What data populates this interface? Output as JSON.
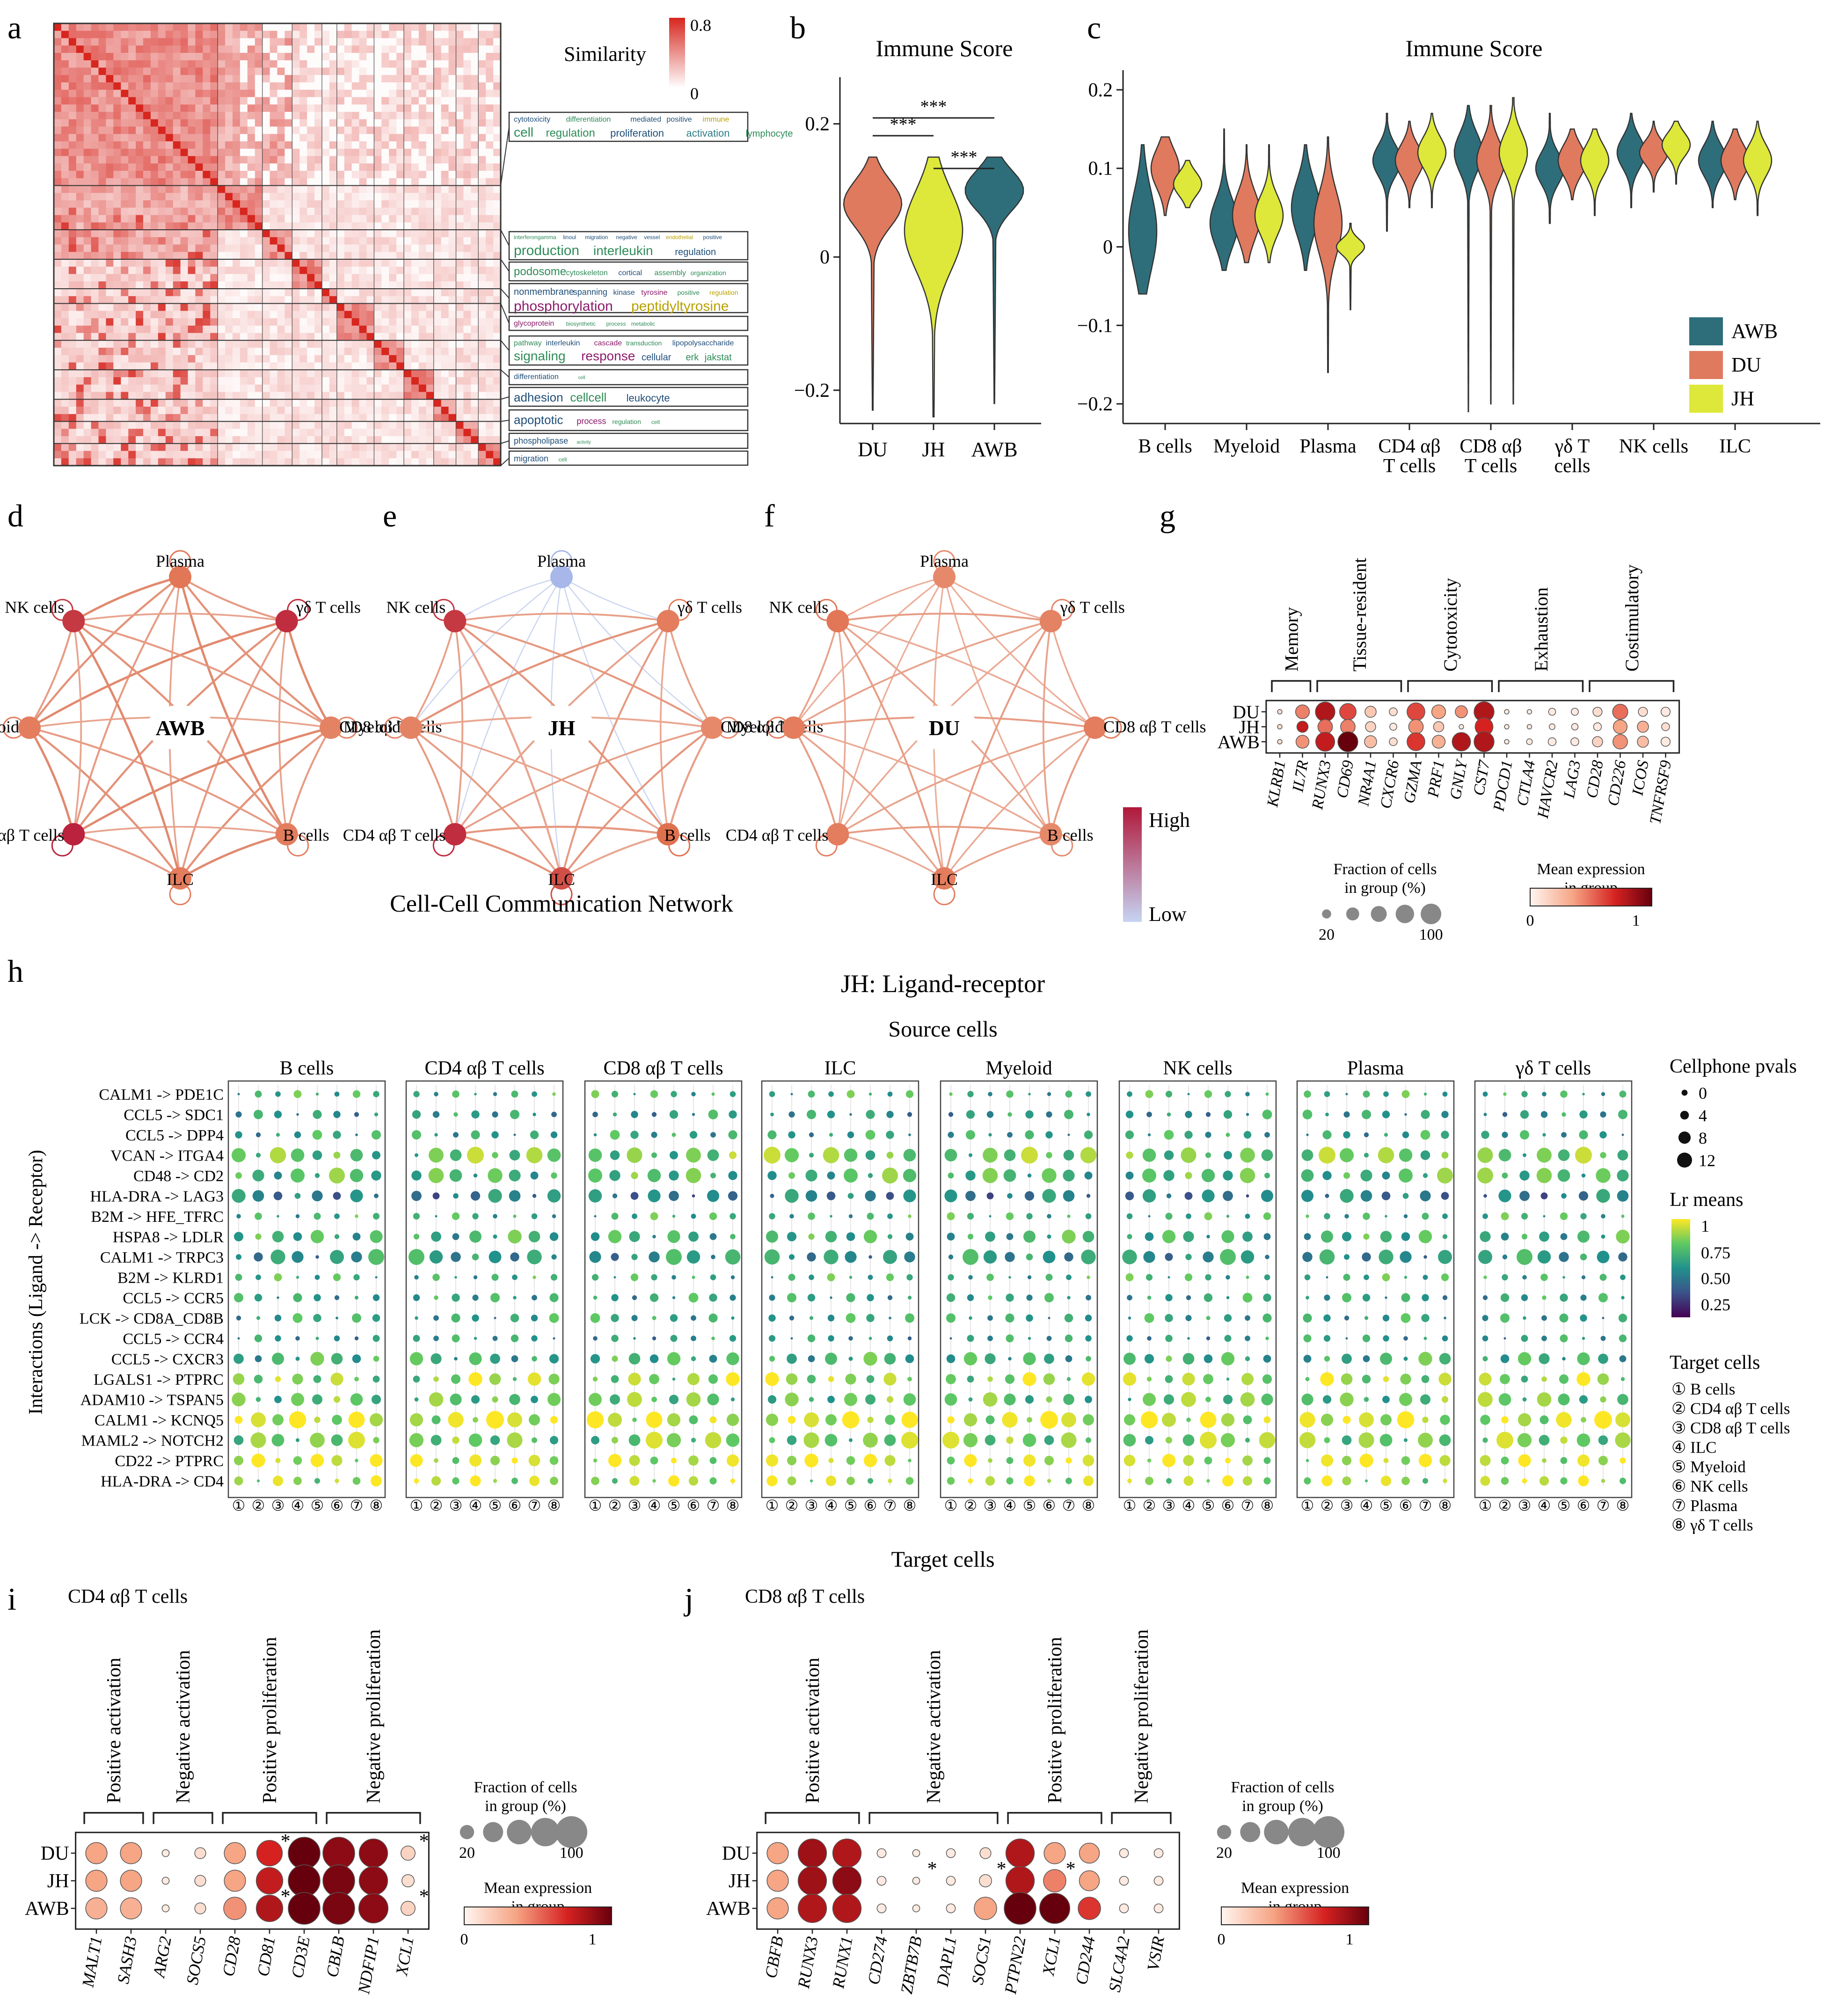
{
  "panel_letters": [
    "a",
    "b",
    "c",
    "d",
    "e",
    "f",
    "g",
    "h",
    "i",
    "j"
  ],
  "colors": {
    "AWB": "#2e6e7a",
    "DU": "#df7a5f",
    "JH": "#dde83a",
    "heat_high": "#d7261e",
    "net_high": "#b0183a",
    "net_low": "#c7d4f4"
  },
  "panel_a": {
    "legend_title": "Similarity",
    "legend_max": "0.8",
    "legend_min": "0",
    "wordclouds": [
      [
        "cytotoxicity",
        "differentiation",
        "mediated",
        "positive",
        "immune"
      ],
      [
        "cell",
        "regulation",
        "proliferation",
        "activation",
        "lymphocyte"
      ],
      [
        "interferongamma",
        "linoul",
        "migration",
        "negative",
        "vessel",
        "endothelial",
        "positive"
      ],
      [
        "production",
        "interleukin",
        "regulation"
      ],
      [
        "podosome",
        "cytoskeleton",
        "cortical",
        "assembly",
        "organization"
      ],
      [
        "nonmembrane",
        "spanning",
        "kinase",
        "tyrosine",
        "positive",
        "regulation"
      ],
      [
        "phosphorylation",
        "peptidyltyrosine"
      ],
      [
        "glycoprotein",
        "biosynthetic",
        "process",
        "metabolic"
      ],
      [
        "pathway",
        "interleukin",
        "cascade",
        "transduction",
        "lipopolysaccharide"
      ],
      [
        "signaling",
        "response",
        "cellular",
        "erk",
        "jakstat"
      ],
      [
        "differentiation",
        "cell"
      ],
      [
        "adhesion",
        "cellcell",
        "leukocyte"
      ],
      [
        "apoptotic",
        "process",
        "regulation",
        "cell"
      ],
      [
        "phospholipase",
        "activity"
      ],
      [
        "migration",
        "cell"
      ]
    ]
  },
  "chart_data": [
    {
      "panel": "b",
      "type": "violin",
      "title": "Immune Score",
      "categories": [
        "DU",
        "JH",
        "AWB"
      ],
      "ylim": [
        -0.25,
        0.27
      ],
      "yticks": [
        -0.2,
        0,
        0.2
      ],
      "ytick_labels": [
        "−0.2",
        "0",
        "0.2"
      ],
      "violins": [
        {
          "group": "DU",
          "min": -0.23,
          "max": 0.15,
          "mode": 0.08,
          "width": 0.52,
          "spread": 0.035
        },
        {
          "group": "JH",
          "min": -0.24,
          "max": 0.15,
          "mode": 0.04,
          "width": 0.52,
          "spread": 0.06
        },
        {
          "group": "AWB",
          "min": -0.22,
          "max": 0.15,
          "mode": 0.1,
          "width": 0.52,
          "spread": 0.03
        }
      ],
      "significance": [
        {
          "from": "DU",
          "to": "AWB",
          "label": "***"
        },
        {
          "from": "DU",
          "to": "JH",
          "label": "***"
        },
        {
          "from": "JH",
          "to": "AWB",
          "label": "***"
        }
      ]
    },
    {
      "panel": "c",
      "type": "violin",
      "title": "Immune Score",
      "categories": [
        "B cells",
        "Myeloid",
        "Plasma",
        "CD4 αβ T cells",
        "CD8 αβ T cells",
        "γδ T cells",
        "NK cells",
        "ILC"
      ],
      "category_lines": [
        [
          "B cells"
        ],
        [
          "Myeloid"
        ],
        [
          "Plasma"
        ],
        [
          "CD4 αβ",
          "T cells"
        ],
        [
          "CD8 αβ",
          "T cells"
        ],
        [
          "γδ T",
          "cells"
        ],
        [
          "NK cells"
        ],
        [
          "ILC"
        ]
      ],
      "groups": [
        "AWB",
        "DU",
        "JH"
      ],
      "ylim": [
        -0.225,
        0.225
      ],
      "yticks": [
        -0.2,
        -0.1,
        0,
        0.1,
        0.2
      ],
      "ytick_labels": [
        "−0.2",
        "−0.1",
        "0",
        "0.1",
        "0.2"
      ],
      "violins": [
        [
          {
            "min": -0.06,
            "max": 0.13,
            "mode": 0.02,
            "spread": 0.05
          },
          {
            "min": 0.04,
            "max": 0.14,
            "mode": 0.1,
            "spread": 0.025
          },
          {
            "min": 0.05,
            "max": 0.11,
            "mode": 0.08,
            "spread": 0.015
          }
        ],
        [
          {
            "min": -0.03,
            "max": 0.15,
            "mode": 0.03,
            "spread": 0.03
          },
          {
            "min": -0.02,
            "max": 0.13,
            "mode": 0.04,
            "spread": 0.03
          },
          {
            "min": -0.02,
            "max": 0.13,
            "mode": 0.04,
            "spread": 0.025
          }
        ],
        [
          {
            "min": -0.03,
            "max": 0.13,
            "mode": 0.05,
            "spread": 0.035
          },
          {
            "min": -0.16,
            "max": 0.14,
            "mode": 0.03,
            "spread": 0.04
          },
          {
            "min": -0.08,
            "max": 0.03,
            "mode": 0.0,
            "spread": 0.01
          }
        ],
        [
          {
            "min": 0.02,
            "max": 0.17,
            "mode": 0.11,
            "spread": 0.02
          },
          {
            "min": 0.05,
            "max": 0.16,
            "mode": 0.11,
            "spread": 0.02
          },
          {
            "min": 0.05,
            "max": 0.17,
            "mode": 0.12,
            "spread": 0.02
          }
        ],
        [
          {
            "min": -0.21,
            "max": 0.18,
            "mode": 0.12,
            "spread": 0.025
          },
          {
            "min": -0.2,
            "max": 0.18,
            "mode": 0.11,
            "spread": 0.025
          },
          {
            "min": -0.2,
            "max": 0.19,
            "mode": 0.12,
            "spread": 0.025
          }
        ],
        [
          {
            "min": 0.03,
            "max": 0.17,
            "mode": 0.1,
            "spread": 0.02
          },
          {
            "min": 0.06,
            "max": 0.15,
            "mode": 0.11,
            "spread": 0.02
          },
          {
            "min": 0.04,
            "max": 0.15,
            "mode": 0.11,
            "spread": 0.02
          }
        ],
        [
          {
            "min": 0.05,
            "max": 0.17,
            "mode": 0.12,
            "spread": 0.02
          },
          {
            "min": 0.07,
            "max": 0.16,
            "mode": 0.12,
            "spread": 0.015
          },
          {
            "min": 0.08,
            "max": 0.16,
            "mode": 0.13,
            "spread": 0.015
          }
        ],
        [
          {
            "min": 0.05,
            "max": 0.16,
            "mode": 0.11,
            "spread": 0.02
          },
          {
            "min": 0.06,
            "max": 0.15,
            "mode": 0.11,
            "spread": 0.02
          },
          {
            "min": 0.04,
            "max": 0.16,
            "mode": 0.11,
            "spread": 0.02
          }
        ]
      ]
    },
    {
      "panel": "g",
      "type": "dotplot",
      "rows": [
        "DU",
        "JH",
        "AWB"
      ],
      "genes": [
        "KLRB1",
        "IL7R",
        "RUNX3",
        "CD69",
        "NR4A1",
        "CXCR6",
        "GZMA",
        "PRF1",
        "GNLY",
        "CST7",
        "PDCD1",
        "CTLA4",
        "HAVCR2",
        "LAG3",
        "CD28",
        "CD226",
        "ICOS",
        "TNFRSF9"
      ],
      "groups": [
        {
          "label": "Memory",
          "start": 0,
          "end": 1
        },
        {
          "label": "Tissue-resident",
          "start": 2,
          "end": 5
        },
        {
          "label": "Cytotoxicity",
          "start": 6,
          "end": 9
        },
        {
          "label": "Exhaustion",
          "start": 10,
          "end": 13
        },
        {
          "label": "Costimulatory",
          "start": 14,
          "end": 17
        }
      ],
      "fraction": [
        [
          0.05,
          0.45,
          0.9,
          0.65,
          0.3,
          0.15,
          0.75,
          0.45,
          0.35,
          0.95,
          0.05,
          0.05,
          0.12,
          0.12,
          0.2,
          0.55,
          0.2,
          0.2
        ],
        [
          0.05,
          0.3,
          0.5,
          0.5,
          0.25,
          0.12,
          0.5,
          0.25,
          0.05,
          0.75,
          0.05,
          0.05,
          0.08,
          0.1,
          0.15,
          0.45,
          0.3,
          0.15
        ],
        [
          0.05,
          0.4,
          0.85,
          0.95,
          0.35,
          0.15,
          0.75,
          0.4,
          0.8,
          0.95,
          0.05,
          0.08,
          0.15,
          0.15,
          0.25,
          0.5,
          0.3,
          0.2
        ]
      ],
      "expression": [
        [
          0.1,
          0.45,
          0.8,
          0.6,
          0.2,
          0.1,
          0.6,
          0.35,
          0.4,
          0.8,
          0.05,
          0.05,
          0.05,
          0.05,
          0.1,
          0.5,
          0.1,
          0.05
        ],
        [
          0.1,
          0.75,
          0.5,
          0.45,
          0.15,
          0.05,
          0.4,
          0.2,
          0.05,
          0.7,
          0.05,
          0.05,
          0.05,
          0.05,
          0.05,
          0.35,
          0.3,
          0.1
        ],
        [
          0.1,
          0.4,
          0.75,
          1.0,
          0.25,
          0.1,
          0.65,
          0.3,
          0.8,
          0.8,
          0.05,
          0.05,
          0.05,
          0.05,
          0.15,
          0.4,
          0.25,
          0.05
        ]
      ],
      "size_legend_title": [
        "Fraction of cells",
        "in group (%)"
      ],
      "size_legend_labels": [
        "20",
        "100"
      ],
      "color_legend_title": [
        "Mean expression",
        "in group"
      ],
      "color_legend_labels": [
        "0",
        "1"
      ]
    },
    {
      "panel": "h",
      "type": "dotplot",
      "title": "JH: Ligand-receptor",
      "source_label": "Source cells",
      "target_label": "Target cells",
      "ylabel": "Interactions (Ligand -> Receptor)",
      "source_cells": [
        "B cells",
        "CD4 αβ T cells",
        "CD8 αβ T cells",
        "ILC",
        "Myeloid",
        "NK cells",
        "Plasma",
        "γδ T cells"
      ],
      "target_numbers": [
        "①",
        "②",
        "③",
        "④",
        "⑤",
        "⑥",
        "⑦",
        "⑧"
      ],
      "interactions": [
        "CALM1 -> PDE1C",
        "CCL5 -> SDC1",
        "CCL5 -> DPP4",
        "VCAN -> ITGA4",
        "CD48 -> CD2",
        "HLA-DRA -> LAG3",
        "B2M -> HFE_TFRC",
        "HSPA8 -> LDLR",
        "CALM1 -> TRPC3",
        "B2M -> KLRD1",
        "CCL5 -> CCR5",
        "LCK -> CD8A_CD8B",
        "CCL5 -> CCR4",
        "CCL5 -> CXCR3",
        "LGALS1 -> PTPRC",
        "ADAM10 -> TSPAN5",
        "CALM1 -> KCNQ5",
        "MAML2 -> NOTCH2",
        "CD22 -> PTPRC",
        "HLA-DRA -> CD4"
      ],
      "row_base_means": [
        0.6,
        0.5,
        0.55,
        0.72,
        0.65,
        0.4,
        0.6,
        0.6,
        0.5,
        0.6,
        0.55,
        0.55,
        0.5,
        0.6,
        0.8,
        0.7,
        0.9,
        0.75,
        0.9,
        0.85
      ],
      "row_base_pvals": [
        2,
        3,
        3,
        9,
        8,
        6,
        2,
        6,
        8,
        2,
        3,
        3,
        2,
        6,
        6,
        7,
        10,
        9,
        6,
        4
      ],
      "legend_pval_title": "Cellphone pvals",
      "legend_pval_labels": [
        "0",
        "4",
        "8",
        "12"
      ],
      "legend_means_title": "Lr means",
      "legend_means_labels": [
        "1",
        "0.75",
        "0.50",
        "0.25"
      ],
      "target_legend_title": "Target cells",
      "target_legend": [
        "① B cells",
        "② CD4 αβ T cells",
        "③ CD8 αβ T cells",
        "④ ILC",
        "⑤ Myeloid",
        "⑥ NK cells",
        "⑦ Plasma",
        "⑧ γδ T cells"
      ]
    },
    {
      "panel": "i",
      "type": "dotplot",
      "subtitle": "CD4 αβ T cells",
      "rows": [
        "DU",
        "JH",
        "AWB"
      ],
      "genes": [
        "MALT1",
        "SASH3",
        "ARG2",
        "SOCS5",
        "CD28",
        "CD81",
        "CD3E",
        "CBLB",
        "NDFIP1",
        "XCL1"
      ],
      "groups": [
        {
          "label": "Positive activation",
          "start": 0,
          "end": 1
        },
        {
          "label": "Negative activation",
          "start": 2,
          "end": 3
        },
        {
          "label": "Positive proliferation",
          "start": 4,
          "end": 6
        },
        {
          "label": "Negative proliferation",
          "start": 7,
          "end": 9
        }
      ],
      "fraction": [
        [
          0.45,
          0.45,
          0.05,
          0.12,
          0.45,
          0.65,
          1.0,
          1.0,
          0.8,
          0.2
        ],
        [
          0.45,
          0.45,
          0.05,
          0.12,
          0.45,
          0.7,
          1.0,
          1.0,
          0.8,
          0.15
        ],
        [
          0.45,
          0.45,
          0.05,
          0.12,
          0.5,
          0.7,
          1.0,
          1.0,
          0.85,
          0.2
        ]
      ],
      "expression": [
        [
          0.35,
          0.35,
          0.05,
          0.1,
          0.35,
          0.7,
          1.0,
          0.9,
          0.9,
          0.15
        ],
        [
          0.35,
          0.35,
          0.05,
          0.1,
          0.35,
          0.75,
          1.0,
          0.95,
          0.9,
          0.1
        ],
        [
          0.3,
          0.3,
          0.05,
          0.1,
          0.4,
          0.8,
          1.0,
          0.95,
          0.9,
          0.15
        ]
      ],
      "stars": [
        [
          "DU",
          "CD81"
        ],
        [
          "AWB",
          "CD81"
        ],
        [
          "DU",
          "XCL1"
        ],
        [
          "AWB",
          "XCL1"
        ]
      ],
      "size_legend_title": [
        "Fraction of cells",
        "in group (%)"
      ],
      "size_legend_labels": [
        "20",
        "100"
      ],
      "color_legend_title": [
        "Mean expression",
        "in group"
      ],
      "color_legend_labels": [
        "0",
        "1"
      ]
    },
    {
      "panel": "j",
      "type": "dotplot",
      "subtitle": "CD8 αβ T cells",
      "rows": [
        "DU",
        "JH",
        "AWB"
      ],
      "genes": [
        "CBFB",
        "RUNX3",
        "RUNX1",
        "CD274",
        "ZBTB7B",
        "DAPL1",
        "SOCS1",
        "PTPN22",
        "XCL1",
        "CD244",
        "SLC4A2",
        "VSIR"
      ],
      "groups": [
        {
          "label": "Positive activation",
          "start": 0,
          "end": 2
        },
        {
          "label": "Negative activation",
          "start": 3,
          "end": 6
        },
        {
          "label": "Positive proliferation",
          "start": 7,
          "end": 9
        },
        {
          "label": "Negative proliferation",
          "start": 10,
          "end": 11
        }
      ],
      "fraction": [
        [
          0.45,
          0.8,
          0.8,
          0.08,
          0.05,
          0.08,
          0.12,
          0.8,
          0.45,
          0.4,
          0.08,
          0.08
        ],
        [
          0.45,
          0.8,
          0.8,
          0.08,
          0.05,
          0.08,
          0.15,
          0.8,
          0.5,
          0.4,
          0.08,
          0.08
        ],
        [
          0.45,
          0.8,
          0.8,
          0.08,
          0.05,
          0.08,
          0.5,
          1.0,
          0.9,
          0.5,
          0.08,
          0.08
        ]
      ],
      "expression": [
        [
          0.35,
          0.85,
          0.8,
          0.05,
          0.05,
          0.05,
          0.1,
          0.8,
          0.35,
          0.35,
          0.05,
          0.05
        ],
        [
          0.35,
          0.85,
          0.9,
          0.05,
          0.05,
          0.05,
          0.1,
          0.8,
          0.45,
          0.35,
          0.05,
          0.05
        ],
        [
          0.35,
          0.8,
          0.8,
          0.05,
          0.05,
          0.05,
          0.35,
          1.0,
          1.0,
          0.65,
          0.05,
          0.05
        ]
      ],
      "stars": [
        [
          "JH",
          "ZBTB7B"
        ],
        [
          "JH",
          "SOCS1"
        ],
        [
          "JH",
          "XCL1"
        ]
      ],
      "size_legend_title": [
        "Fraction of cells",
        "in group (%)"
      ],
      "size_legend_labels": [
        "20",
        "100"
      ],
      "color_legend_title": [
        "Mean expression",
        "in group"
      ],
      "color_legend_labels": [
        "0",
        "1"
      ]
    }
  ],
  "legend_c": [
    "AWB",
    "DU",
    "JH"
  ],
  "networks": {
    "nodes": [
      "Plasma",
      "γδ T cells",
      "CD8 αβ T cells",
      "B cells",
      "ILC",
      "CD4 αβ T cells",
      "Myeloid",
      "NK cells"
    ],
    "centers": [
      "AWB",
      "JH",
      "DU"
    ],
    "title": "Cell-Cell Communication Network",
    "legend_high": "High",
    "legend_low": "Low"
  }
}
